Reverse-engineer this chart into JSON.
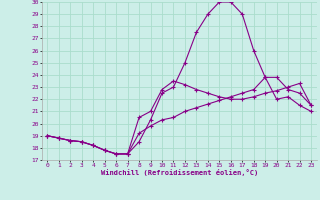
{
  "xlabel": "Windchill (Refroidissement éolien,°C)",
  "bg_color": "#cceee8",
  "grid_color": "#aaddcc",
  "line_color": "#880088",
  "xlim": [
    -0.5,
    23.5
  ],
  "ylim": [
    17,
    30
  ],
  "xticks": [
    0,
    1,
    2,
    3,
    4,
    5,
    6,
    7,
    8,
    9,
    10,
    11,
    12,
    13,
    14,
    15,
    16,
    17,
    18,
    19,
    20,
    21,
    22,
    23
  ],
  "yticks": [
    17,
    18,
    19,
    20,
    21,
    22,
    23,
    24,
    25,
    26,
    27,
    28,
    29,
    30
  ],
  "series1_x": [
    0,
    1,
    2,
    3,
    4,
    5,
    6,
    7,
    8,
    9,
    10,
    11,
    12,
    13,
    14,
    15,
    16,
    17,
    18,
    19,
    20,
    21,
    22,
    23
  ],
  "series1_y": [
    19.0,
    18.8,
    18.6,
    18.5,
    18.2,
    17.8,
    17.5,
    17.5,
    20.5,
    21.0,
    22.8,
    23.5,
    23.2,
    22.8,
    22.5,
    22.2,
    22.0,
    22.0,
    22.2,
    22.5,
    22.7,
    23.0,
    23.3,
    21.5
  ],
  "series2_x": [
    0,
    1,
    2,
    3,
    4,
    5,
    6,
    7,
    8,
    9,
    10,
    11,
    12,
    13,
    14,
    15,
    16,
    17,
    18,
    19,
    20,
    21,
    22,
    23
  ],
  "series2_y": [
    19.0,
    18.8,
    18.6,
    18.5,
    18.2,
    17.8,
    17.5,
    17.5,
    18.5,
    20.3,
    22.5,
    23.0,
    25.0,
    27.5,
    29.0,
    30.0,
    30.0,
    29.0,
    26.0,
    23.8,
    22.0,
    22.2,
    21.5,
    21.0
  ],
  "series3_x": [
    0,
    1,
    2,
    3,
    4,
    5,
    6,
    7,
    8,
    9,
    10,
    11,
    12,
    13,
    14,
    15,
    16,
    17,
    18,
    19,
    20,
    21,
    22,
    23
  ],
  "series3_y": [
    19.0,
    18.8,
    18.6,
    18.5,
    18.2,
    17.8,
    17.5,
    17.5,
    19.2,
    19.8,
    20.3,
    20.5,
    21.0,
    21.3,
    21.6,
    21.9,
    22.2,
    22.5,
    22.8,
    23.8,
    23.8,
    22.8,
    22.5,
    21.5
  ]
}
